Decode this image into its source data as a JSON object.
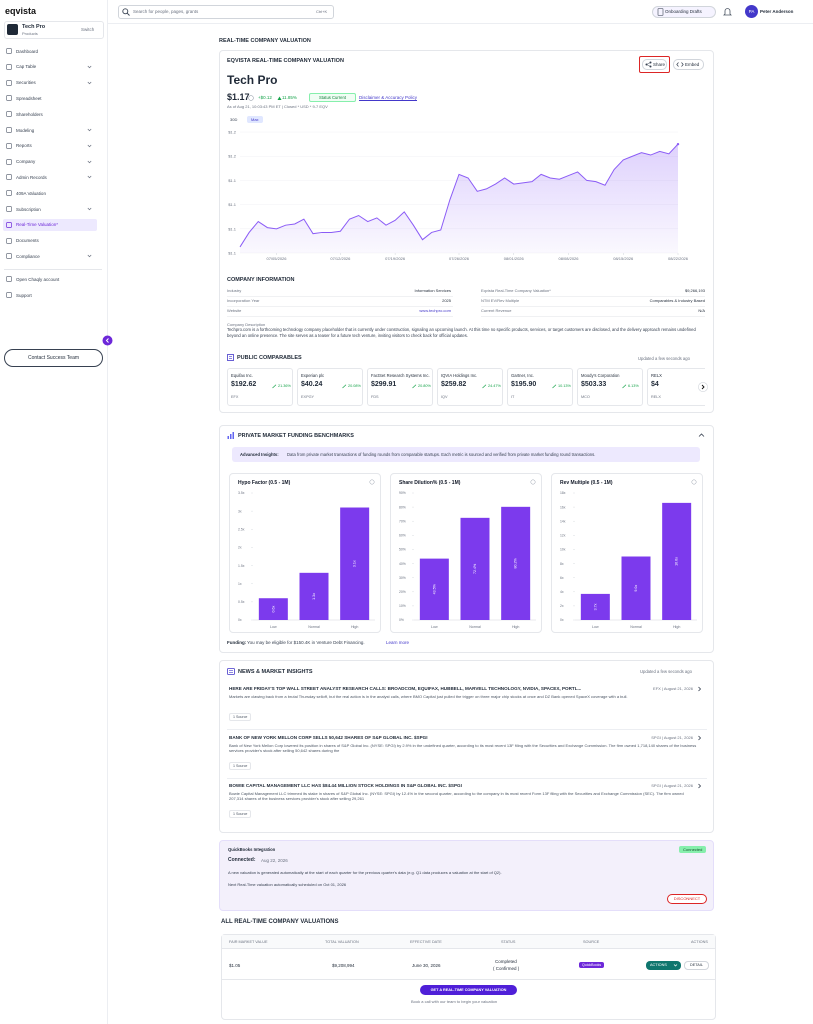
{
  "sidebar": {
    "brand": "eqvista",
    "company": {
      "name": "Tech Pro",
      "subtitle": "Products",
      "action": "Switch"
    },
    "nav": [
      {
        "label": "Dashboard",
        "expandable": false
      },
      {
        "label": "Cap Table",
        "expandable": true
      },
      {
        "label": "Securities",
        "expandable": true
      },
      {
        "label": "Spreadsheet",
        "expandable": false
      },
      {
        "label": "Shareholders",
        "expandable": false
      },
      {
        "label": "Modeling",
        "expandable": true
      },
      {
        "label": "Reports",
        "expandable": true
      },
      {
        "label": "Company",
        "expandable": true
      },
      {
        "label": "Admin Records",
        "expandable": true
      },
      {
        "label": "409A Valuation",
        "expandable": false
      },
      {
        "label": "Subscription",
        "expandable": true
      },
      {
        "label": "Real-Time Valuation*",
        "expandable": false,
        "active": true
      },
      {
        "label": "Documents",
        "expandable": false
      },
      {
        "label": "Compliance",
        "expandable": true
      }
    ],
    "extra_nav": [
      "Open Chaqly account",
      "Support"
    ],
    "contact": "Contact Success Team"
  },
  "topbar": {
    "search": "Search for people, pages, grants",
    "shortcut": "Ctrl+K",
    "onboarding": "Onboarding Drafts",
    "initials": "PA",
    "user": "Peter Anderson"
  },
  "page_title": "REAL-TIME COMPANY VALUATION",
  "valuation": {
    "heading": "EQVISTA REAL-TIME COMPANY VALUATION",
    "share": "Share",
    "embed": "Embed",
    "company": "Tech Pro",
    "price": "$1.17",
    "change": "+$0.12",
    "change_pct": "11.85%",
    "status": "Status Current",
    "disclaimer": "Disclaimer & Accuracy Policy",
    "as_of": "As of Aug 21, 10:03:43 PM ET | Closed * USD * 9-7 EQV",
    "ranges": [
      "30D",
      "Max"
    ]
  },
  "company_info": {
    "title": "COMPANY INFORMATION",
    "left": [
      [
        "Industry",
        "Information Services"
      ],
      [
        "Incorporation Year",
        "2025"
      ],
      [
        "Website",
        "www.techpro.com"
      ]
    ],
    "right": [
      [
        "Eqvista Real-Time Company Valuation*",
        "$9,266,193"
      ],
      [
        "NTM EV/Rev Multiple",
        "Comparables & Industry Based"
      ],
      [
        "Current Revenue",
        "N/A"
      ]
    ],
    "description_label": "Company Description",
    "description": "Techpro.com is a forthcoming technology company placeholder that is currently under construction, signaling an upcoming launch. At this time no specific products, services, or target customers are disclosed, and the delivery approach remains undefined beyond an online presence. The site serves as a teaser for a future tech venture, inviting visitors to check back for official updates."
  },
  "comparables": {
    "title": "PUBLIC COMPARABLES",
    "updated": "Updated a few seconds ago",
    "items": [
      {
        "name": "Equifax Inc.",
        "price": "$192.62",
        "change": "21.36%",
        "ticker": "EFX"
      },
      {
        "name": "Experian plc",
        "price": "$40.24",
        "change": "20.08%",
        "ticker": "EXPGY"
      },
      {
        "name": "FactSet Research Systems Inc.",
        "price": "$299.91",
        "change": "20.80%",
        "ticker": "FDS"
      },
      {
        "name": "IQVIA Holdings Inc.",
        "price": "$259.82",
        "change": "24.47%",
        "ticker": "IQV"
      },
      {
        "name": "Gartner, Inc.",
        "price": "$195.90",
        "change": "10.13%",
        "ticker": "IT"
      },
      {
        "name": "Moody's Corporation",
        "price": "$503.33",
        "change": "6.13%",
        "ticker": "MCO"
      },
      {
        "name": "RELX",
        "price": "$4",
        "change": "",
        "ticker": "RELX"
      }
    ]
  },
  "benchmarks": {
    "title": "PRIVATE MARKET FUNDING BENCHMARKS",
    "insight_label": "Advanced Insights:",
    "insight": "Data from private market transactions of funding rounds from comparable startups. Each metric is sourced and verified from private market funding round transactions.",
    "funding_label": "Funding:",
    "funding": "You may be eligible for $150.4K in Venture Debt Financing.",
    "learn_more": "Learn more"
  },
  "chart_data": [
    {
      "type": "line",
      "color": "#8b5cf6",
      "grid": true,
      "categories": [
        null,
        null,
        null,
        null,
        "07/05/2026",
        null,
        null,
        null,
        null,
        null,
        null,
        "07/12/2026",
        null,
        null,
        null,
        null,
        null,
        "07/19/2026",
        null,
        null,
        null,
        null,
        null,
        null,
        "07/26/2026",
        null,
        null,
        null,
        null,
        null,
        "08/01/2026",
        null,
        null,
        null,
        null,
        null,
        "08/08/2026",
        null,
        null,
        null,
        null,
        null,
        "08/15/2026",
        null,
        null,
        null,
        null,
        null,
        "08/22/2026"
      ],
      "values": [
        1.085,
        1.097,
        1.106,
        1.101,
        1.1,
        1.103,
        1.104,
        1.108,
        1.096,
        1.097,
        1.097,
        1.098,
        1.108,
        1.111,
        1.106,
        1.109,
        1.103,
        1.107,
        1.114,
        1.103,
        1.091,
        1.097,
        1.099,
        1.124,
        1.145,
        1.142,
        1.131,
        1.133,
        1.137,
        1.142,
        1.137,
        1.138,
        1.139,
        1.145,
        1.142,
        1.141,
        1.144,
        1.147,
        1.14,
        1.139,
        1.136,
        1.149,
        1.157,
        1.16,
        1.163,
        1.161,
        1.164,
        1.162,
        1.17
      ],
      "ylim": [
        1.08,
        1.185
      ],
      "yticks": [
        {
          "value": 1.18,
          "label": "$1.2"
        },
        {
          "value": 1.16,
          "label": "$1.2"
        },
        {
          "value": 1.14,
          "label": "$1.1"
        },
        {
          "value": 1.12,
          "label": "$1.1"
        },
        {
          "value": 1.1,
          "label": "$1.1"
        },
        {
          "value": 1.08,
          "label": "$1.1"
        }
      ]
    },
    {
      "type": "bar",
      "title": "Hypo Factor (0.5 - 1M)",
      "color": "#7c3aed",
      "categories": [
        "Low",
        "Normal",
        "High"
      ],
      "values": [
        0.6,
        1.3,
        3.1
      ],
      "value_labels": [
        "0.6x",
        "1.3x",
        "3.1x"
      ],
      "ylim": [
        0,
        3.5
      ],
      "yticks": [
        {
          "value": 0,
          "label": "0x"
        },
        {
          "value": 0.5,
          "label": "0.5x"
        },
        {
          "value": 1,
          "label": "1x"
        },
        {
          "value": 1.5,
          "label": "1.5x"
        },
        {
          "value": 2,
          "label": "2x"
        },
        {
          "value": 2.5,
          "label": "2.5x"
        },
        {
          "value": 3,
          "label": "3x"
        },
        {
          "value": 3.5,
          "label": "3.5x"
        }
      ]
    },
    {
      "type": "bar",
      "title": "Share Dilution% (0.5 - 1M)",
      "color": "#7c3aed",
      "categories": [
        "Low",
        "Normal",
        "High"
      ],
      "values": [
        43.5,
        72.4,
        80.2
      ],
      "value_labels": [
        "43.5%",
        "72.4%",
        "80.2%"
      ],
      "ylim": [
        0,
        90
      ],
      "yticks": [
        {
          "value": 0,
          "label": "0%"
        },
        {
          "value": 10,
          "label": "10%"
        },
        {
          "value": 20,
          "label": "20%"
        },
        {
          "value": 30,
          "label": "30%"
        },
        {
          "value": 40,
          "label": "40%"
        },
        {
          "value": 50,
          "label": "50%"
        },
        {
          "value": 60,
          "label": "60%"
        },
        {
          "value": 70,
          "label": "70%"
        },
        {
          "value": 80,
          "label": "80%"
        },
        {
          "value": 90,
          "label": "90%"
        }
      ]
    },
    {
      "type": "bar",
      "title": "Rev Multiple (0.5 - 1M)",
      "color": "#7c3aed",
      "categories": [
        "Low",
        "Normal",
        "High"
      ],
      "values": [
        3.7,
        9.0,
        16.6
      ],
      "value_labels": [
        "3.7x",
        "9.0x",
        "16.6x"
      ],
      "ylim": [
        0,
        18
      ],
      "yticks": [
        {
          "value": 0,
          "label": "0x"
        },
        {
          "value": 2,
          "label": "2x"
        },
        {
          "value": 4,
          "label": "4x"
        },
        {
          "value": 6,
          "label": "6x"
        },
        {
          "value": 8,
          "label": "8x"
        },
        {
          "value": 10,
          "label": "10x"
        },
        {
          "value": 12,
          "label": "12x"
        },
        {
          "value": 14,
          "label": "14x"
        },
        {
          "value": 16,
          "label": "16x"
        },
        {
          "value": 18,
          "label": "18x"
        }
      ]
    }
  ],
  "news": {
    "title": "NEWS & MARKET INSIGHTS",
    "updated": "Updated a few seconds ago",
    "items": [
      {
        "headline": "HERE ARE FRIDAY'S TOP WALL STREET ANALYST RESEARCH CALLS: BROADCOM, EQUIFAX, HUBBELL, MARVELL TECHNOLOGY, NVIDIA, SPACEX, PORTL...",
        "meta": "EFX | August 21, 2026",
        "body": "Markets are clawing back from a brutal Thursday selloff, but the real action is in the analyst calls, where BMO Capital just pulled the trigger on three major chip stocks at once and DZ Bank opened SpaceX coverage with a bull.",
        "source": "1 Source"
      },
      {
        "headline": "BANK OF NEW YORK MELLON CORP SELLS 50,642 SHARES OF S&P GLOBAL INC. $SPGI",
        "meta": "SPGI | August 21, 2026",
        "body": "Bank of New York Mellon Corp lowered its position in shares of S&P Global Inc. (NYSE: SPGI) by 2.9% in the undefined quarter, according to its most recent 13F filing with the Securities and Exchange Commission. The firm owned 1,718,140 shares of the business services provider's stock after selling 50,642 shares during the",
        "source": "1 Source"
      },
      {
        "headline": "BOWIE CAPITAL MANAGEMENT LLC HAS $84.44 MILLION STOCK HOLDINGS IN S&P GLOBAL INC. $SPGI",
        "meta": "SPGI | August 21, 2026",
        "body": "Bowie Capital Management LLC trimmed its stake in shares of S&P Global Inc. (NYSE: SPGI) by 12.4% in the second quarter, according to the company in its most recent Form 13F filing with the Securities and Exchange Commission (SEC). The firm owned 207,314 shares of the business services provider's stock after selling 29,261",
        "source": "1 Source"
      }
    ]
  },
  "quickbooks": {
    "title": "QuickBooks Integration",
    "badge": "Connected",
    "connected_label": "Connected:",
    "connected_date": "Aug 22, 2026",
    "note": "A new valuation is generated automatically at the start of each quarter for the previous quarter's data (e.g. Q1 data produces a valuation at the start of Q2).",
    "next": "Next Real-Time valuation automatically scheduled on Oct 01, 2026",
    "disconnect": "DISCONNECT"
  },
  "all_valuations": {
    "title": "ALL REAL-TIME COMPANY VALUATIONS",
    "columns": [
      "FAIR MARKET VALUE",
      "TOTAL VALUATION",
      "EFFECTIVE DATE",
      "STATUS",
      "SOURCE",
      "ACTIONS"
    ],
    "row": {
      "fmv": "$1.05",
      "total": "$9,208,994",
      "date": "June 30, 2026",
      "status": "Completed",
      "status_note": "( Confirmed )",
      "source": "QuickBooks",
      "actions": "ACTIONS",
      "detail": "DETAIL"
    },
    "cta": "GET A REAL-TIME COMPANY VALUATION",
    "cta_note": "Book a call with our team to begin your valuation"
  }
}
